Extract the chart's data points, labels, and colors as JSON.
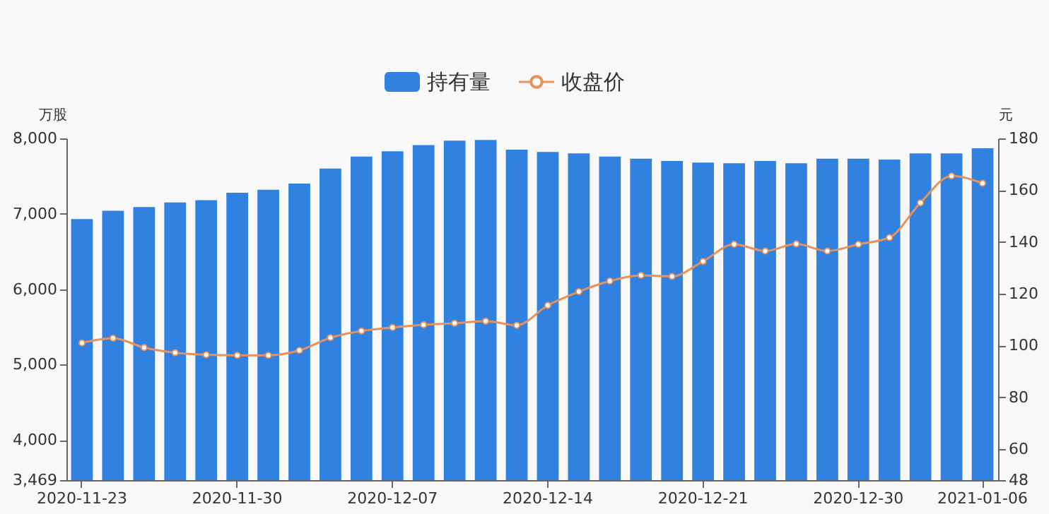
{
  "chart_data": {
    "type": "bar",
    "categories": [
      "2020-11-23",
      null,
      null,
      null,
      null,
      "2020-11-30",
      null,
      null,
      null,
      null,
      "2020-12-07",
      null,
      null,
      null,
      null,
      "2020-12-14",
      null,
      null,
      null,
      null,
      "2020-12-21",
      null,
      null,
      null,
      null,
      "2020-12-30",
      null,
      null,
      null,
      "2021-01-06"
    ],
    "series": [
      {
        "name": "持有量",
        "color": "#3182e0",
        "values": [
          6930,
          7040,
          7090,
          7150,
          7180,
          7280,
          7320,
          7400,
          7600,
          7760,
          7830,
          7910,
          7970,
          7980,
          7850,
          7820,
          7800,
          7760,
          7730,
          7700,
          7680,
          7670,
          7700,
          7670,
          7730,
          7730,
          7720,
          7800,
          7800,
          7870
        ]
      },
      {
        "name": "收盘价",
        "type": "line",
        "axis": "y2",
        "color": "#e8915b",
        "values": [
          101.0,
          102.8,
          99.2,
          97.2,
          96.4,
          96.2,
          96.2,
          98.1,
          103.0,
          105.6,
          107.0,
          108.0,
          108.6,
          109.4,
          107.8,
          115.5,
          120.8,
          124.9,
          127.1,
          126.7,
          132.5,
          139.1,
          136.5,
          139.2,
          136.5,
          139.1,
          141.7,
          155.1,
          165.5,
          162.7
        ]
      }
    ],
    "ylabel": "万股",
    "y2label": "元",
    "ylim": [
      3469,
      8000
    ],
    "yticks": [
      {
        "value": 3469,
        "label": "3,469"
      },
      {
        "value": 4000,
        "label": "4,000"
      },
      {
        "value": 5000,
        "label": "5,000"
      },
      {
        "value": 6000,
        "label": "6,000"
      },
      {
        "value": 7000,
        "label": "7,000"
      },
      {
        "value": 8000,
        "label": "8,000"
      }
    ],
    "y2lim": [
      48,
      180
    ],
    "y2ticks": [
      48,
      60,
      80,
      100,
      120,
      140,
      160,
      180
    ],
    "legend": "top",
    "grid": false,
    "marker": "circle",
    "line_style": "solid"
  }
}
